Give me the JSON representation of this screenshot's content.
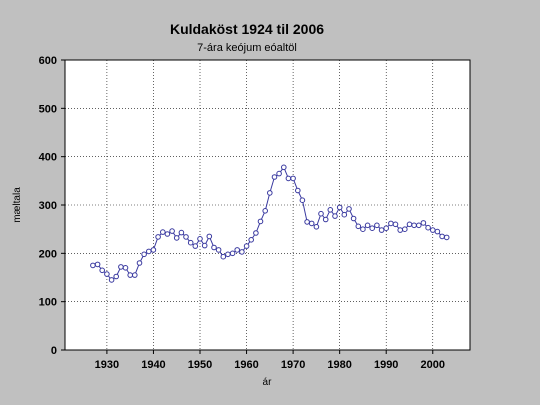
{
  "chart_data": {
    "type": "line",
    "title": "Kuldaköst 1924 til 2006",
    "subtitle": "7-ára keójum eóaltöl",
    "xlabel": "ár",
    "ylabel": "mæltala",
    "xlim": [
      1921,
      2008
    ],
    "ylim": [
      0,
      600
    ],
    "xticks": [
      1930,
      1940,
      1950,
      1960,
      1970,
      1980,
      1990,
      2000
    ],
    "yticks": [
      0,
      100,
      200,
      300,
      400,
      500,
      600
    ],
    "grid": true,
    "series": [
      {
        "color": "#3a3aa0",
        "marker": "circle",
        "x": [
          1927,
          1928,
          1929,
          1930,
          1931,
          1932,
          1933,
          1934,
          1935,
          1936,
          1937,
          1938,
          1939,
          1940,
          1941,
          1942,
          1943,
          1944,
          1945,
          1946,
          1947,
          1948,
          1949,
          1950,
          1951,
          1952,
          1953,
          1954,
          1955,
          1956,
          1957,
          1958,
          1959,
          1960,
          1961,
          1962,
          1963,
          1964,
          1965,
          1966,
          1967,
          1968,
          1969,
          1970,
          1971,
          1972,
          1973,
          1974,
          1975,
          1976,
          1977,
          1978,
          1979,
          1980,
          1981,
          1982,
          1983,
          1984,
          1985,
          1986,
          1987,
          1988,
          1989,
          1990,
          1991,
          1992,
          1993,
          1994,
          1995,
          1996,
          1997,
          1998,
          1999,
          2000,
          2001,
          2002,
          2003
        ],
        "y": [
          175,
          177,
          165,
          157,
          145,
          152,
          172,
          170,
          155,
          155,
          180,
          198,
          204,
          207,
          234,
          244,
          240,
          246,
          232,
          243,
          234,
          222,
          215,
          230,
          216,
          235,
          212,
          207,
          193,
          198,
          200,
          207,
          203,
          215,
          228,
          242,
          266,
          288,
          325,
          358,
          365,
          378,
          355,
          355,
          330,
          310,
          265,
          262,
          255,
          282,
          270,
          290,
          277,
          295,
          280,
          292,
          272,
          256,
          250,
          258,
          252,
          258,
          248,
          252,
          262,
          260,
          248,
          250,
          260,
          258,
          258,
          263,
          253,
          248,
          245,
          235,
          233
        ]
      }
    ]
  }
}
